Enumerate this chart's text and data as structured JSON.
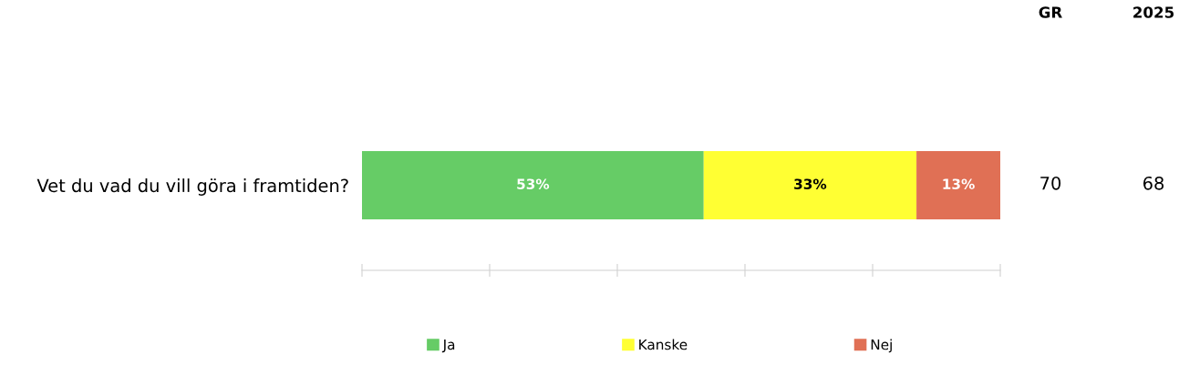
{
  "chart_data": {
    "type": "bar",
    "orientation": "horizontal",
    "stacked": true,
    "categories": [
      "Vet du vad du vill göra i framtiden?"
    ],
    "series": [
      {
        "name": "Ja",
        "color": "#66cc66",
        "values": [
          53
        ],
        "value_labels": [
          "53%"
        ]
      },
      {
        "name": "Kanske",
        "color": "#ffff33",
        "values": [
          33
        ],
        "value_labels": [
          "33%"
        ]
      },
      {
        "name": "Nej",
        "color": "#e07055",
        "values": [
          13
        ],
        "value_labels": [
          "13%"
        ]
      }
    ],
    "tick_labels": "y",
    "grid": false,
    "legend": "bottom",
    "annotations": [
      "GR",
      "2025",
      "70",
      "68"
    ]
  }
}
